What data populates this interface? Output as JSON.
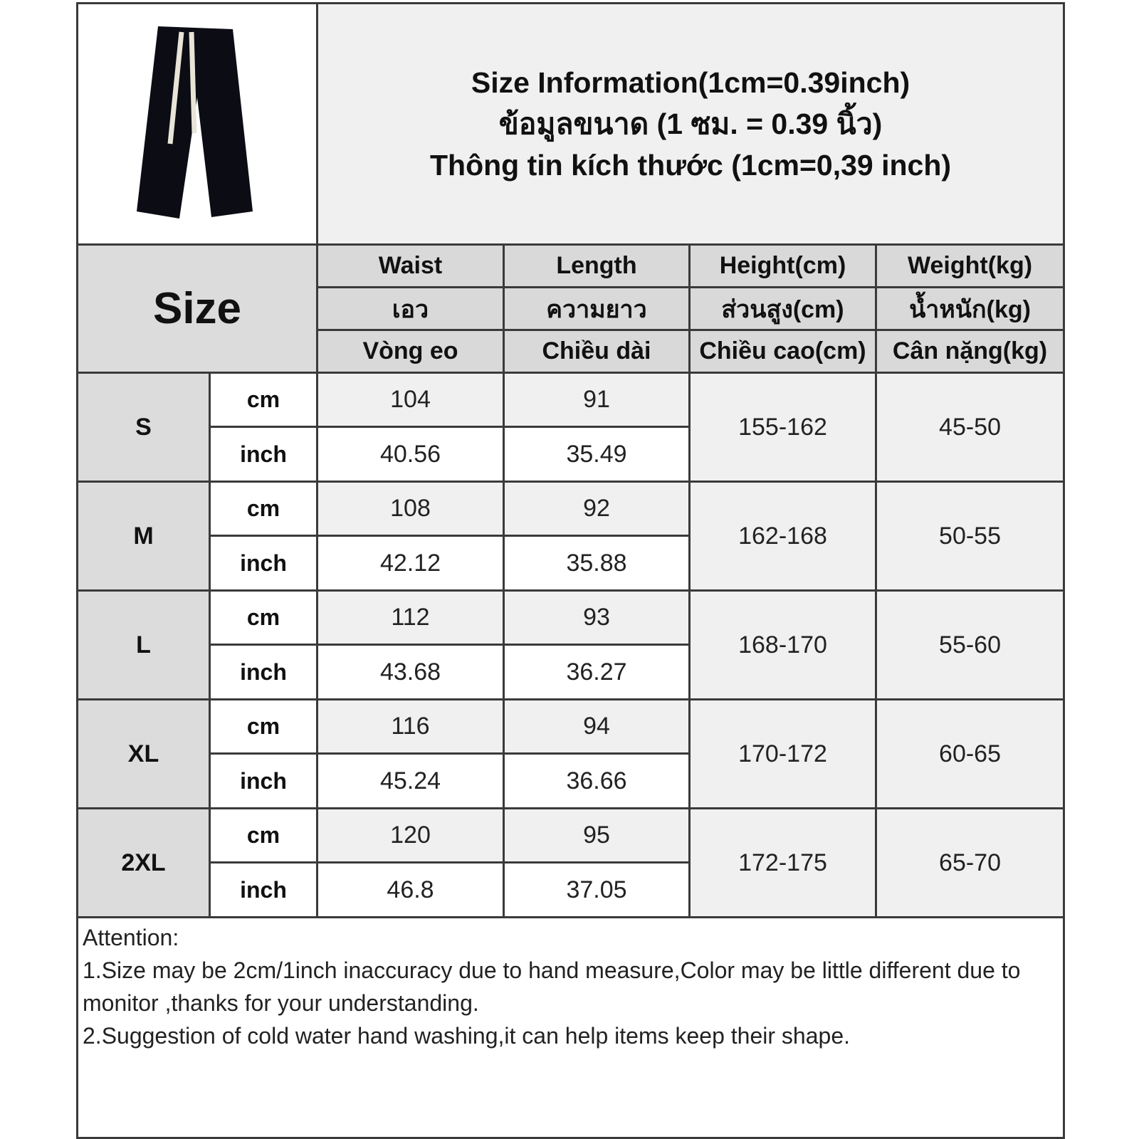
{
  "title": {
    "line1": "Size Information(1cm=0.39inch)",
    "line2": "ข้อมูลขนาด (1 ซม. = 0.39 นิ้ว)",
    "line3": "Thông tin kích thước (1cm=0,39 inch)"
  },
  "size_label": "Size",
  "columns": [
    {
      "en": "Waist",
      "th": "เอว",
      "vi": "Vòng eo"
    },
    {
      "en": "Length",
      "th": "ความยาว",
      "vi": "Chiều dài"
    },
    {
      "en": "Height(cm)",
      "th": "ส่วนสูง(cm)",
      "vi": "Chiều cao(cm)"
    },
    {
      "en": "Weight(kg)",
      "th": "น้ำหนัก(kg)",
      "vi": "Cân nặng(kg)"
    }
  ],
  "units": {
    "cm": "cm",
    "inch": "inch"
  },
  "rows": [
    {
      "size": "S",
      "waist_cm": "104",
      "length_cm": "91",
      "waist_in": "40.56",
      "length_in": "35.49",
      "height": "155-162",
      "weight": "45-50"
    },
    {
      "size": "M",
      "waist_cm": "108",
      "length_cm": "92",
      "waist_in": "42.12",
      "length_in": "35.88",
      "height": "162-168",
      "weight": "50-55"
    },
    {
      "size": "L",
      "waist_cm": "112",
      "length_cm": "93",
      "waist_in": "43.68",
      "length_in": "36.27",
      "height": "168-170",
      "weight": "55-60"
    },
    {
      "size": "XL",
      "waist_cm": "116",
      "length_cm": "94",
      "waist_in": "45.24",
      "length_in": "36.66",
      "height": "170-172",
      "weight": "60-65"
    },
    {
      "size": "2XL",
      "waist_cm": "120",
      "length_cm": "95",
      "waist_in": "46.8",
      "length_in": "37.05",
      "height": "172-175",
      "weight": "65-70"
    }
  ],
  "notes": {
    "heading": "Attention:",
    "line1": "1.Size may be 2cm/1inch inaccuracy due to hand measure,Color may be little different due to monitor ,thanks for your understanding.",
    "line2": "2.Suggestion of cold water hand washing,it can help items keep their shape."
  }
}
